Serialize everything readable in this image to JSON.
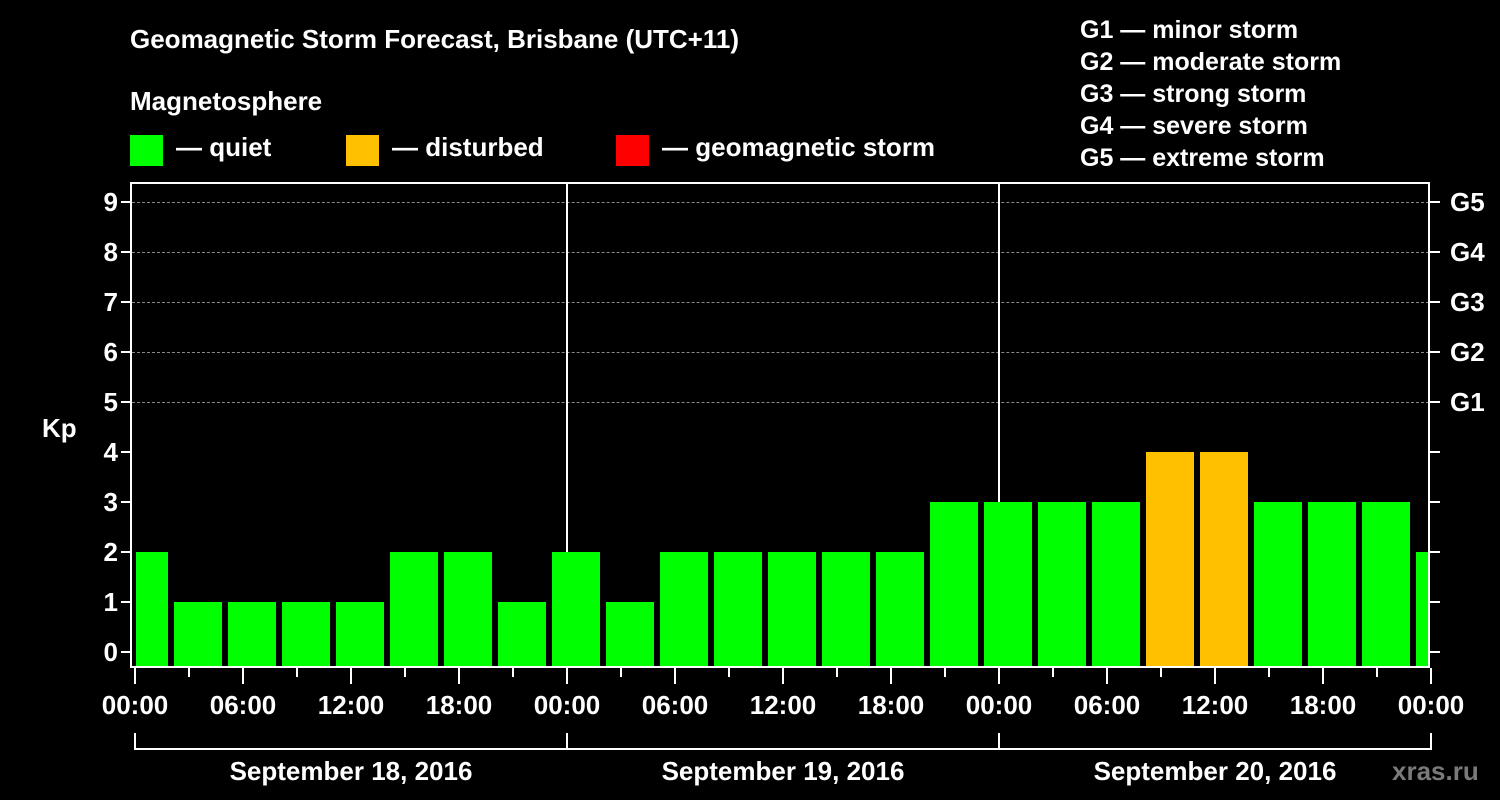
{
  "title": "Geomagnetic Storm Forecast, Brisbane (UTC+11)",
  "legend": {
    "heading": "Magnetosphere",
    "items": [
      {
        "label": "— quiet",
        "color": "#00ff00"
      },
      {
        "label": "— disturbed",
        "color": "#ffc000"
      },
      {
        "label": "— geomagnetic storm",
        "color": "#ff0000"
      }
    ]
  },
  "storm_scale": [
    "G1 — minor storm",
    "G2 — moderate storm",
    "G3 — strong storm",
    "G4 — severe storm",
    "G5 — extreme storm"
  ],
  "axis": {
    "ylabel": "Kp",
    "yticks": [
      "0",
      "1",
      "2",
      "3",
      "4",
      "5",
      "6",
      "7",
      "8",
      "9"
    ],
    "right_labels": {
      "5": "G1",
      "6": "G2",
      "7": "G3",
      "8": "G4",
      "9": "G5"
    },
    "xticks": [
      "00:00",
      "06:00",
      "12:00",
      "18:00",
      "00:00",
      "06:00",
      "12:00",
      "18:00",
      "00:00",
      "06:00",
      "12:00",
      "18:00",
      "00:00"
    ],
    "days": [
      "September 18, 2016",
      "September 19, 2016",
      "September 20, 2016"
    ]
  },
  "watermark": "xras.ru",
  "chart_data": {
    "type": "bar",
    "title": "Geomagnetic Storm Forecast, Brisbane (UTC+11)",
    "xlabel": "",
    "ylabel": "Kp",
    "ylim": [
      0,
      9
    ],
    "grid": true,
    "legend_position": "top",
    "categories": [
      "Sep 18 00:00",
      "Sep 18 03:00",
      "Sep 18 06:00",
      "Sep 18 09:00",
      "Sep 18 12:00",
      "Sep 18 15:00",
      "Sep 18 18:00",
      "Sep 18 21:00",
      "Sep 19 00:00",
      "Sep 19 03:00",
      "Sep 19 06:00",
      "Sep 19 09:00",
      "Sep 19 12:00",
      "Sep 19 15:00",
      "Sep 19 18:00",
      "Sep 19 21:00",
      "Sep 20 00:00",
      "Sep 20 03:00",
      "Sep 20 06:00",
      "Sep 20 09:00",
      "Sep 20 12:00",
      "Sep 20 15:00",
      "Sep 20 18:00",
      "Sep 20 21:00",
      "Sep 21 00:00"
    ],
    "values": [
      2,
      1,
      1,
      1,
      1,
      2,
      2,
      1,
      2,
      1,
      2,
      2,
      2,
      2,
      2,
      3,
      3,
      3,
      3,
      4,
      4,
      3,
      3,
      3,
      2
    ],
    "status": [
      "quiet",
      "quiet",
      "quiet",
      "quiet",
      "quiet",
      "quiet",
      "quiet",
      "quiet",
      "quiet",
      "quiet",
      "quiet",
      "quiet",
      "quiet",
      "quiet",
      "quiet",
      "quiet",
      "quiet",
      "quiet",
      "quiet",
      "disturbed",
      "disturbed",
      "quiet",
      "quiet",
      "quiet",
      "quiet"
    ],
    "status_colors": {
      "quiet": "#00ff00",
      "disturbed": "#ffc000",
      "storm": "#ff0000"
    }
  }
}
